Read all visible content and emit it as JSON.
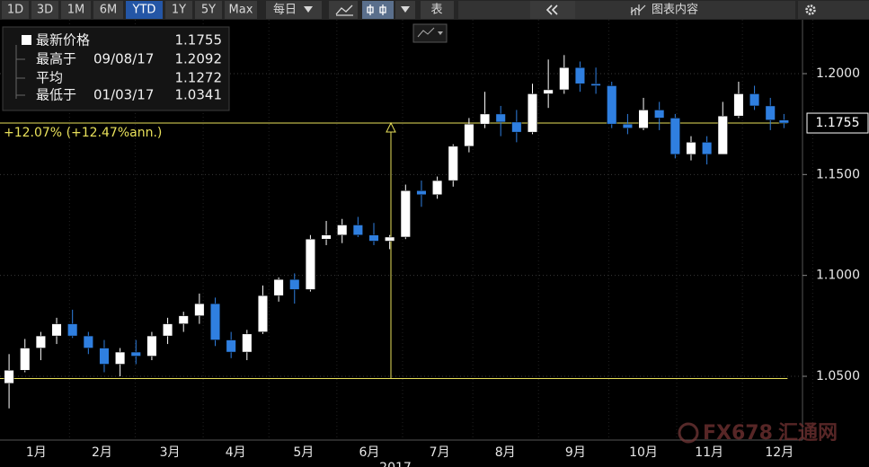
{
  "toolbar": {
    "ranges": [
      "1D",
      "3D",
      "1M",
      "6M",
      "YTD",
      "1Y",
      "5Y",
      "Max"
    ],
    "selected": "YTD",
    "frequency": "每日",
    "table": "表",
    "content": "图表内容"
  },
  "chart_data": {
    "type": "candlestick",
    "stats": [
      {
        "label": "最新价格",
        "value": 1.1755
      },
      {
        "label": "最高于",
        "date": "09/08/17",
        "value": 1.2092
      },
      {
        "label": "平均",
        "value": 1.1272
      },
      {
        "label": "最低于",
        "date": "01/03/17",
        "value": 1.0341
      }
    ],
    "annotation": "+12.07% (+12.47%ann.)",
    "reference_lines": [
      1.0489,
      1.1755
    ],
    "last_price": 1.1755,
    "year_label": "2017",
    "xlim": [
      0,
      353
    ],
    "xticks": [
      {
        "value": 16,
        "label": "1月"
      },
      {
        "value": 45,
        "label": "2月"
      },
      {
        "value": 75,
        "label": "3月"
      },
      {
        "value": 104,
        "label": "4月"
      },
      {
        "value": 134,
        "label": "5月"
      },
      {
        "value": 163,
        "label": "6月"
      },
      {
        "value": 194,
        "label": "7月"
      },
      {
        "value": 223,
        "label": "8月"
      },
      {
        "value": 254,
        "label": "9月"
      },
      {
        "value": 284,
        "label": "10月"
      },
      {
        "value": 313,
        "label": "11月"
      },
      {
        "value": 344,
        "label": "12月"
      }
    ],
    "ylim": [
      1.0184,
      1.2267
    ],
    "yticks": [
      {
        "value": 1.05,
        "label": "1.0500"
      },
      {
        "value": 1.1,
        "label": "1.1000"
      },
      {
        "value": 1.15,
        "label": "1.1500"
      },
      {
        "value": 1.2,
        "label": "1.2000"
      }
    ],
    "grid": true,
    "up_color": "#ffffff",
    "down_color": "#2f7fe0",
    "reference_color": "#e8e05a",
    "x": [
      4,
      11,
      18,
      25,
      32,
      39,
      46,
      53,
      60,
      67,
      74,
      81,
      88,
      95,
      102,
      109,
      116,
      123,
      130,
      137,
      144,
      151,
      158,
      165,
      172,
      179,
      186,
      193,
      200,
      207,
      214,
      221,
      228,
      235,
      242,
      249,
      256,
      263,
      270,
      277,
      284,
      291,
      298,
      305,
      312,
      319,
      326,
      333,
      340,
      346
    ],
    "open": [
      1.0465,
      1.053,
      1.064,
      1.07,
      1.076,
      1.07,
      1.064,
      1.056,
      1.062,
      1.06,
      1.07,
      1.076,
      1.08,
      1.086,
      1.068,
      1.062,
      1.072,
      1.09,
      1.098,
      1.093,
      1.118,
      1.12,
      1.125,
      1.12,
      1.117,
      1.119,
      1.142,
      1.14,
      1.147,
      1.164,
      1.175,
      1.18,
      1.176,
      1.171,
      1.19,
      1.192,
      1.203,
      1.195,
      1.194,
      1.175,
      1.173,
      1.182,
      1.178,
      1.16,
      1.166,
      1.16,
      1.179,
      1.19,
      1.184,
      1.177
    ],
    "high": [
      1.061,
      1.0685,
      1.072,
      1.079,
      1.083,
      1.072,
      1.068,
      1.064,
      1.068,
      1.072,
      1.079,
      1.082,
      1.091,
      1.089,
      1.072,
      1.073,
      1.095,
      1.099,
      1.101,
      1.12,
      1.127,
      1.128,
      1.129,
      1.126,
      1.12,
      1.145,
      1.147,
      1.149,
      1.165,
      1.178,
      1.191,
      1.184,
      1.182,
      1.195,
      1.207,
      1.2092,
      1.206,
      1.203,
      1.196,
      1.18,
      1.188,
      1.186,
      1.18,
      1.169,
      1.169,
      1.186,
      1.196,
      1.194,
      1.188,
      1.18
    ],
    "low": [
      1.0341,
      1.052,
      1.058,
      1.066,
      1.069,
      1.061,
      1.052,
      1.05,
      1.056,
      1.058,
      1.066,
      1.072,
      1.076,
      1.065,
      1.059,
      1.058,
      1.071,
      1.087,
      1.086,
      1.092,
      1.115,
      1.116,
      1.119,
      1.115,
      1.113,
      1.118,
      1.134,
      1.138,
      1.144,
      1.161,
      1.173,
      1.169,
      1.166,
      1.17,
      1.183,
      1.19,
      1.191,
      1.19,
      1.173,
      1.17,
      1.172,
      1.172,
      1.158,
      1.157,
      1.155,
      1.16,
      1.178,
      1.182,
      1.172,
      1.173
    ],
    "close": [
      1.053,
      1.064,
      1.07,
      1.076,
      1.07,
      1.064,
      1.056,
      1.062,
      1.06,
      1.07,
      1.076,
      1.08,
      1.086,
      1.068,
      1.062,
      1.071,
      1.09,
      1.098,
      1.093,
      1.118,
      1.12,
      1.125,
      1.12,
      1.117,
      1.119,
      1.142,
      1.14,
      1.147,
      1.164,
      1.175,
      1.18,
      1.176,
      1.171,
      1.19,
      1.192,
      1.203,
      1.195,
      1.194,
      1.175,
      1.173,
      1.182,
      1.178,
      1.16,
      1.166,
      1.16,
      1.179,
      1.19,
      1.184,
      1.177,
      1.1755
    ]
  },
  "watermark": {
    "brand": "FX678",
    "name": "汇通网"
  }
}
